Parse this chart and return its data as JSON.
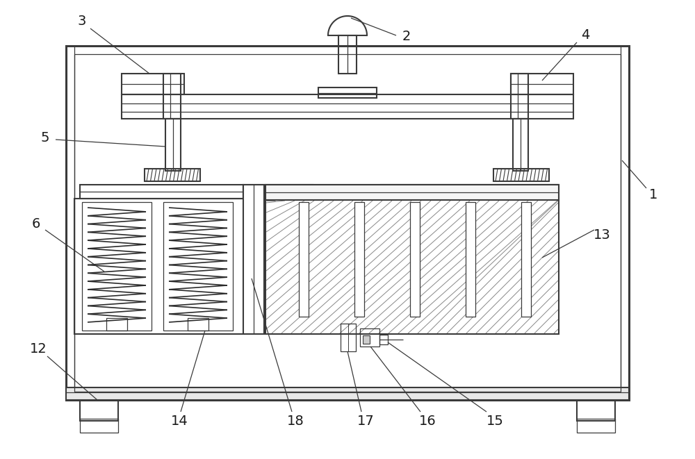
{
  "bg_color": "#ffffff",
  "line_color": "#3a3a3a",
  "lw_outer": 2.2,
  "lw_main": 1.5,
  "lw_thin": 0.9,
  "lw_hair": 0.6,
  "fig_width": 10.0,
  "fig_height": 6.61,
  "label_fontsize": 14,
  "label_color": "#1a1a1a"
}
